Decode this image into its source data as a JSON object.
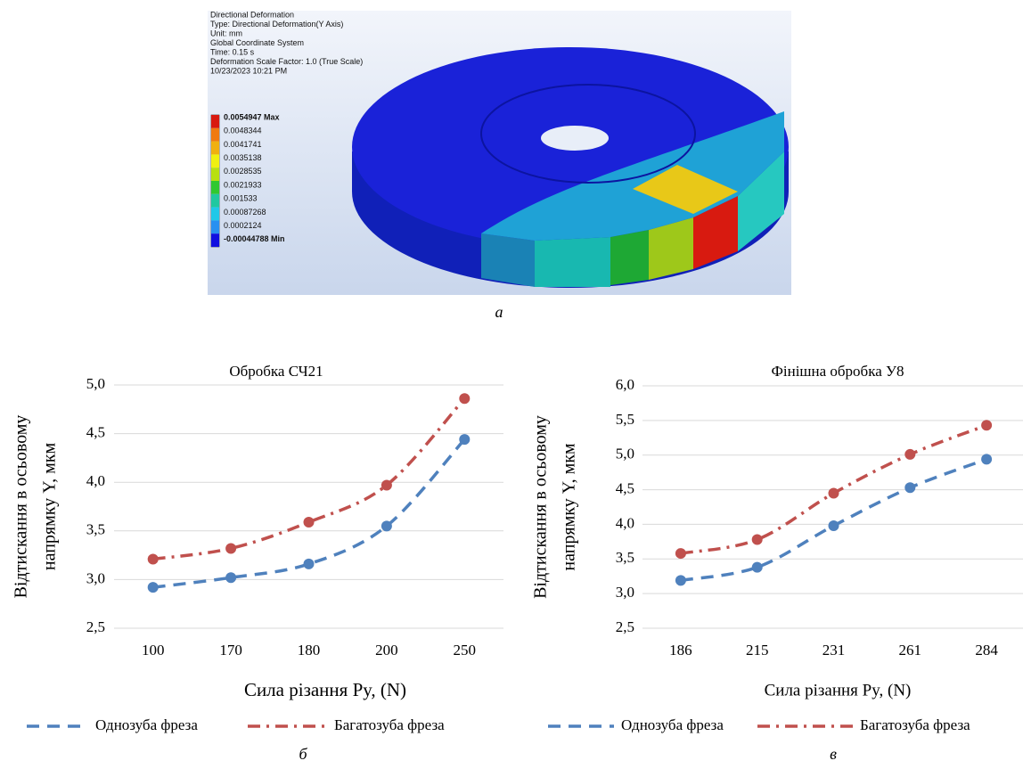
{
  "fea_image": {
    "header_lines": [
      "Directional Deformation",
      "Type: Directional Deformation(Y Axis)",
      "Unit: mm",
      "Global Coordinate System",
      "Time: 0.15 s",
      "Deformation Scale Factor: 1.0 (True Scale)",
      "10/23/2023 10:21 PM"
    ],
    "legend_labels": [
      "0.0054947 Max",
      "0.0048344",
      "0.0041741",
      "0.0035138",
      "0.0028535",
      "0.0021933",
      "0.001533",
      "0.00087268",
      "0.0002124",
      "-0.00044788 Min"
    ],
    "caption": "а"
  },
  "chart_data": [
    {
      "type": "line",
      "title": "Обробка СЧ21",
      "categories": [
        "100",
        "170",
        "180",
        "200",
        "250"
      ],
      "series": [
        {
          "name": "Однозуба фреза",
          "color": "#4f81bd",
          "line_style": "dashed",
          "values": [
            2.92,
            3.02,
            3.16,
            3.55,
            4.44
          ]
        },
        {
          "name": "Багатозуба фреза",
          "color": "#c0504d",
          "line_style": "dash-dot",
          "values": [
            3.21,
            3.32,
            3.59,
            3.97,
            4.86
          ]
        }
      ],
      "ylim": [
        2.5,
        5.0
      ],
      "yticks": [
        {
          "value": 2.5,
          "label": "2,5"
        },
        {
          "value": 3.0,
          "label": "3,0"
        },
        {
          "value": 3.5,
          "label": "3,5"
        },
        {
          "value": 4.0,
          "label": "4,0"
        },
        {
          "value": 4.5,
          "label": "4,5"
        },
        {
          "value": 5.0,
          "label": "5,0"
        }
      ],
      "y_label": [
        "Відтискання в осьовому",
        "напрямку Y, мкм"
      ],
      "x_label": "Сила різання  Py, (N)",
      "grid": true,
      "caption": "б"
    },
    {
      "type": "line",
      "title": "Фінішна обробка У8",
      "categories": [
        "186",
        "215",
        "231",
        "261",
        "284"
      ],
      "series": [
        {
          "name": "Однозуба фреза",
          "color": "#4f81bd",
          "line_style": "dashed",
          "values": [
            3.19,
            3.38,
            3.98,
            4.53,
            4.94
          ]
        },
        {
          "name": "Багатозуба фреза",
          "color": "#c0504d",
          "line_style": "dash-dot",
          "values": [
            3.58,
            3.78,
            4.45,
            5.01,
            5.43
          ]
        }
      ],
      "ylim": [
        2.5,
        6.0
      ],
      "yticks": [
        {
          "value": 2.5,
          "label": "2,5"
        },
        {
          "value": 3.0,
          "label": "3,0"
        },
        {
          "value": 3.5,
          "label": "3,5"
        },
        {
          "value": 4.0,
          "label": "4,0"
        },
        {
          "value": 4.5,
          "label": "4,5"
        },
        {
          "value": 5.0,
          "label": "5,0"
        },
        {
          "value": 5.5,
          "label": "5,5"
        },
        {
          "value": 6.0,
          "label": "6,0"
        }
      ],
      "y_label": [
        "Відтискання в осьовому",
        "напрямку Y, мкм"
      ],
      "x_label": "Сила різання  Py, (N)",
      "grid": true,
      "caption": "в"
    }
  ]
}
